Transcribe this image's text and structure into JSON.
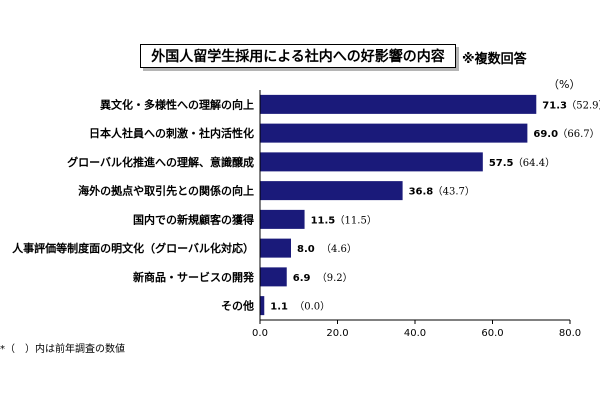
{
  "header": {
    "title": "外国人留学生採用による社内への好影響の内容",
    "subtitle": "※複数回答",
    "unit": "（%）"
  },
  "footnote": "*（　）内は前年調査の数値",
  "colors": {
    "bar": "#1a1a7a",
    "axis": "#000000"
  },
  "chart_data": {
    "type": "bar",
    "orientation": "horizontal",
    "title": "外国人留学生採用による社内への好影響の内容",
    "xlabel": "",
    "ylabel": "",
    "xlim": [
      0,
      80
    ],
    "ticks": [
      "0.0",
      "20.0",
      "40.0",
      "60.0",
      "80.0"
    ],
    "tick_values": [
      0,
      20,
      40,
      60,
      80
    ],
    "grid": false,
    "categories": [
      "異文化・多様性への理解の向上",
      "日本人社員への刺激・社内活性化",
      "グローバル化推進への理解、意識醸成",
      "海外の拠点や取引先との関係の向上",
      "国内での新規顧客の獲得",
      "人事評価等制度面の明文化（グローバル化対応）",
      "新商品・サービスの開発",
      "その他"
    ],
    "values": [
      71.3,
      69.0,
      57.5,
      36.8,
      11.5,
      8.0,
      6.9,
      1.1
    ],
    "value_labels": [
      "71.3",
      "69.0",
      "57.5",
      "36.8",
      "11.5",
      "8.0",
      "6.9",
      "1.1"
    ],
    "previous_values": [
      52.9,
      66.7,
      64.4,
      43.7,
      11.5,
      4.6,
      9.2,
      0.0
    ],
    "previous_labels": [
      "（52.9）",
      "（66.7）",
      "（64.4）",
      "（43.7）",
      "（11.5）",
      "（4.6）",
      "（9.2）",
      "（0.0）"
    ]
  }
}
